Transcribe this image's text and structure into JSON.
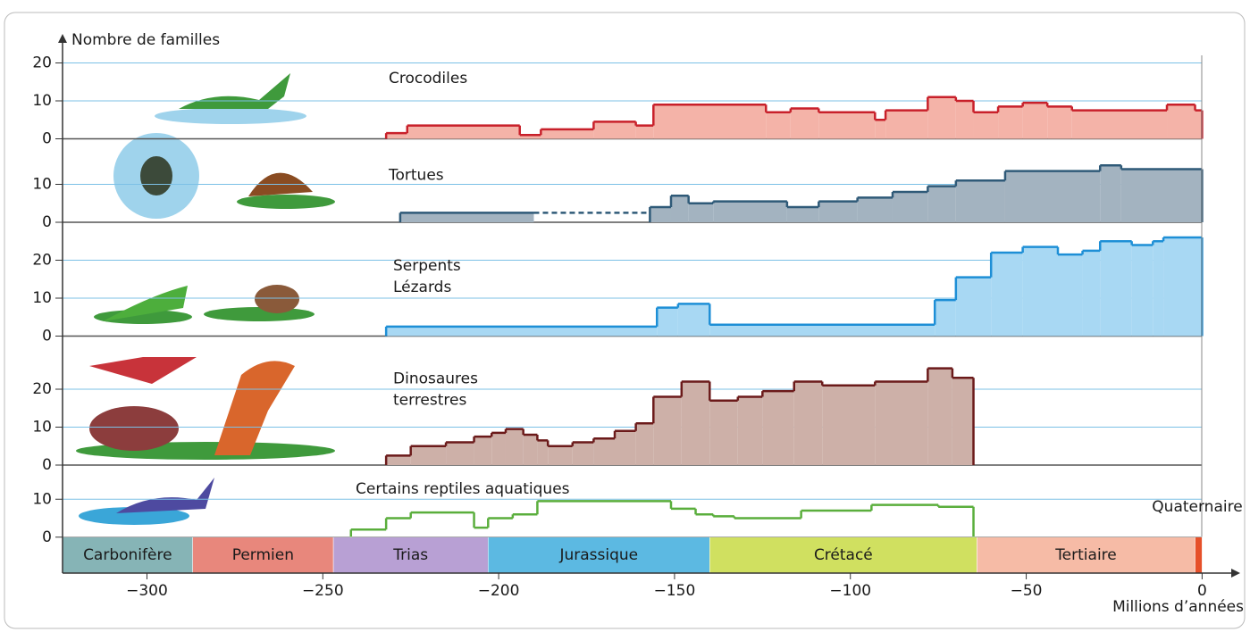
{
  "chart_data": {
    "type": "step",
    "ylabel": "Nombre de familles",
    "xlabel": "Millions d’années",
    "xlim": [
      -324,
      6
    ],
    "xticks": [
      {
        "value": -300,
        "label": "−300"
      },
      {
        "value": -250,
        "label": "−250"
      },
      {
        "value": -200,
        "label": "−200"
      },
      {
        "value": -150,
        "label": "−150"
      },
      {
        "value": -100,
        "label": "−100"
      },
      {
        "value": -50,
        "label": "−50"
      },
      0
    ],
    "grid": true,
    "panels": [
      {
        "label": [
          "Crocodiles"
        ],
        "color": "#c8202a",
        "fill": "#f4b3a8",
        "ylim": [
          0,
          22
        ],
        "yticks": [
          0,
          10,
          20
        ],
        "bins": [
          -232,
          -226,
          -194,
          -188,
          -173,
          -161,
          -156,
          -124,
          -117,
          -109,
          -93,
          -90,
          -78,
          -70,
          -65,
          -58,
          -51,
          -44,
          -37,
          -10,
          -2,
          0
        ],
        "values": [
          1.5,
          3.5,
          1,
          2.5,
          4.5,
          3.5,
          9,
          7,
          8,
          7,
          5,
          7.5,
          11,
          10,
          7,
          8.5,
          9.5,
          8.5,
          7.5,
          9,
          7.5
        ]
      },
      {
        "label": [
          "Tortues"
        ],
        "color": "#2f5a78",
        "fill": "#a3b3c0",
        "ylim": [
          0,
          22
        ],
        "yticks": [
          0,
          10
        ],
        "bins": [
          -228,
          -190,
          -157,
          -151,
          -146,
          -139,
          -118,
          -109,
          -98,
          -88,
          -78,
          -70,
          -56,
          -29,
          -23,
          0
        ],
        "values": [
          2.5,
          null,
          4,
          7,
          5,
          5.5,
          4,
          5.5,
          6.5,
          8,
          9.5,
          11,
          13.5,
          15,
          14
        ]
      },
      {
        "label": [
          "Serpents",
          "Lézards"
        ],
        "color": "#1e8fd6",
        "fill": "#a8d8f3",
        "ylim": [
          0,
          30
        ],
        "yticks": [
          0,
          10,
          20
        ],
        "bins": [
          -232,
          -155,
          -149,
          -140,
          -76,
          -70,
          -60,
          -51,
          -41,
          -34,
          -29,
          -20,
          -14,
          -11,
          0
        ],
        "values": [
          2.5,
          7.5,
          8.5,
          3,
          9.5,
          15.5,
          22,
          23.5,
          21.5,
          22.5,
          25,
          24,
          25,
          26
        ]
      },
      {
        "label": [
          "Dinosaures",
          "terrestres"
        ],
        "color": "#6b1a1a",
        "fill": "#cdb0a8",
        "ylim": [
          0,
          34
        ],
        "yticks": [
          0,
          10,
          20
        ],
        "bins": [
          -232,
          -225,
          -215,
          -207,
          -202,
          -198,
          -193,
          -189,
          -186,
          -179,
          -173,
          -167,
          -161,
          -156,
          -148,
          -140,
          -132,
          -125,
          -116,
          -108,
          -93,
          -78,
          -71,
          -65
        ],
        "values": [
          2.5,
          5,
          6,
          7.5,
          8.5,
          9.5,
          8,
          6.5,
          5,
          6,
          7,
          9,
          11,
          18,
          22,
          17,
          18,
          19.5,
          22,
          21,
          22,
          25.5,
          23
        ]
      },
      {
        "label": [
          "Certains reptiles aquatiques"
        ],
        "color": "#5aae3c",
        "fill": null,
        "ylim": [
          0,
          19
        ],
        "yticks": [
          0,
          10
        ],
        "bins": [
          -242,
          -232,
          -225,
          -207,
          -203,
          -196,
          -189,
          -151,
          -144,
          -139,
          -133,
          -114,
          -94,
          -75,
          -65
        ],
        "values": [
          2,
          5,
          6.5,
          2.5,
          5,
          6,
          9.5,
          7.5,
          6,
          5.5,
          5,
          7,
          8.5,
          8
        ]
      }
    ],
    "periods": {
      "names": [
        "Carbonifère",
        "Permien",
        "Trias",
        "Jurassique",
        "Crétacé",
        "Tertiaire",
        "Quaternaire"
      ],
      "bins": [
        -324,
        -287,
        -247,
        -203,
        -140,
        -64,
        -2,
        0
      ],
      "colors": [
        "#86b4b6",
        "#e8877c",
        "#b8a0d4",
        "#5cb9e2",
        "#d0e060",
        "#f6bba6",
        "#e6502a"
      ]
    }
  }
}
